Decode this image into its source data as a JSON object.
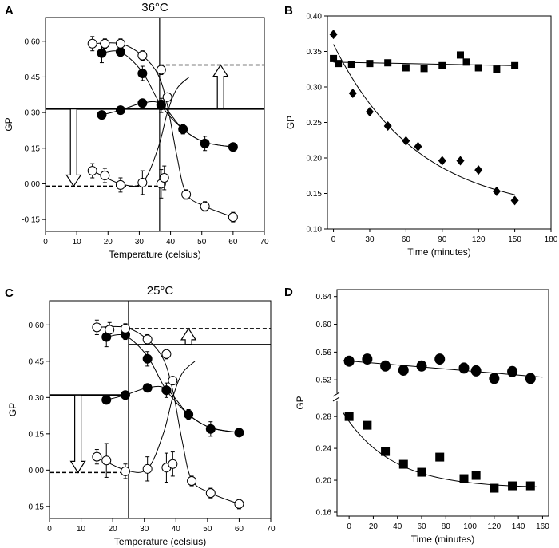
{
  "chart_data": [
    {
      "panel": "A",
      "type": "scatter",
      "title": "36°C",
      "xlabel": "Temperature (celsius)",
      "ylabel": "GP",
      "xlim": [
        0,
        70
      ],
      "ylim": [
        -0.2,
        0.7
      ],
      "xticks": [
        0,
        10,
        20,
        30,
        40,
        50,
        60,
        70
      ],
      "yticks": [
        0.6,
        0.45,
        0.3,
        0.15,
        0.0,
        -0.15
      ],
      "ytick_labels": [
        "0.60",
        "0.45",
        "0.30",
        "0.15",
        "0.00",
        "-0.15"
      ],
      "series": [
        {
          "name": "filled",
          "marker": "filled-circle",
          "x": [
            18,
            24,
            31,
            37,
            44,
            51,
            60
          ],
          "y": [
            0.55,
            0.555,
            0.465,
            0.33,
            0.23,
            0.17,
            0.155
          ],
          "err": [
            0.04,
            0.02,
            0.03,
            0.03,
            0.02,
            0.03,
            0.0
          ]
        },
        {
          "name": "filled-lower",
          "marker": "filled-circle",
          "x": [
            18,
            24,
            31,
            37
          ],
          "y": [
            0.29,
            0.31,
            0.34,
            0.335
          ],
          "err": [
            0.0,
            0.0,
            0.0,
            0.0
          ]
        },
        {
          "name": "open",
          "marker": "open-circle",
          "x": [
            15,
            19,
            24,
            31,
            37,
            39
          ],
          "y": [
            0.59,
            0.59,
            0.59,
            0.54,
            0.48,
            0.365
          ],
          "err": [
            0.03,
            0.02,
            0.02,
            0.02,
            0.02,
            0.0
          ]
        },
        {
          "name": "open-lower",
          "marker": "open-circle",
          "x": [
            15,
            19,
            24,
            31,
            37,
            38,
            45,
            51,
            60
          ],
          "y": [
            0.055,
            0.035,
            -0.005,
            0.005,
            0.0,
            0.025,
            -0.045,
            -0.095,
            -0.14
          ],
          "err": [
            0.03,
            0.03,
            0.03,
            0.05,
            0.06,
            0.05,
            0.02,
            0.02,
            0.02
          ]
        }
      ],
      "reference_lines": {
        "vertical_x": 36.5,
        "horizontal_solid_y": 0.315,
        "dashed_upper_y": 0.5,
        "dashed_lower_y": -0.01
      },
      "arrows": [
        {
          "direction": "down",
          "x": 9,
          "from_y": 0.315,
          "to_y": -0.01
        },
        {
          "direction": "up",
          "x": 56,
          "from_y": 0.315,
          "to_y": 0.5
        }
      ]
    },
    {
      "panel": "B",
      "type": "scatter",
      "title": "",
      "xlabel": "Time (minutes)",
      "ylabel": "GP",
      "xlim": [
        -5,
        180
      ],
      "ylim": [
        0.1,
        0.4
      ],
      "xticks": [
        0,
        30,
        60,
        90,
        120,
        150,
        180
      ],
      "yticks": [
        0.1,
        0.15,
        0.2,
        0.25,
        0.3,
        0.35,
        0.4
      ],
      "ytick_labels": [
        "0.10",
        "0.15",
        "0.20",
        "0.25",
        "0.30",
        "0.35",
        "0.40"
      ],
      "series": [
        {
          "name": "squares",
          "marker": "filled-square",
          "x": [
            0,
            4,
            15,
            30,
            45,
            60,
            75,
            90,
            105,
            110,
            120,
            135,
            150
          ],
          "y": [
            0.34,
            0.333,
            0.332,
            0.333,
            0.334,
            0.327,
            0.326,
            0.33,
            0.345,
            0.335,
            0.327,
            0.325,
            0.33
          ]
        },
        {
          "name": "diamonds",
          "marker": "filled-diamond",
          "x": [
            0,
            16,
            30,
            45,
            60,
            70,
            90,
            105,
            120,
            135,
            150
          ],
          "y": [
            0.374,
            0.291,
            0.265,
            0.245,
            0.224,
            0.216,
            0.196,
            0.196,
            0.183,
            0.153,
            0.14
          ]
        }
      ]
    },
    {
      "panel": "C",
      "type": "scatter",
      "title": "25°C",
      "xlabel": "Temperature (celsius)",
      "ylabel": "GP",
      "xlim": [
        0,
        70
      ],
      "ylim": [
        -0.2,
        0.7
      ],
      "xticks": [
        0,
        10,
        20,
        30,
        40,
        50,
        60,
        70
      ],
      "yticks": [
        0.6,
        0.45,
        0.3,
        0.15,
        0.0,
        -0.15
      ],
      "ytick_labels": [
        "0.60",
        "0.45",
        "0.30",
        "0.15",
        "0.00",
        "-0.15"
      ],
      "series": [
        {
          "name": "filled",
          "marker": "filled-circle",
          "x": [
            18,
            24,
            31,
            37,
            44,
            51,
            60
          ],
          "y": [
            0.55,
            0.56,
            0.46,
            0.33,
            0.23,
            0.17,
            0.155
          ],
          "err": [
            0.04,
            0.02,
            0.03,
            0.03,
            0.02,
            0.03,
            0.0
          ]
        },
        {
          "name": "filled-lower",
          "marker": "filled-circle",
          "x": [
            18,
            24,
            31,
            37
          ],
          "y": [
            0.29,
            0.31,
            0.34,
            0.33
          ],
          "err": [
            0.0,
            0.0,
            0.0,
            0.0
          ]
        },
        {
          "name": "open",
          "marker": "open-circle",
          "x": [
            15,
            19,
            24,
            31,
            37,
            39
          ],
          "y": [
            0.59,
            0.58,
            0.585,
            0.54,
            0.48,
            0.37
          ],
          "err": [
            0.03,
            0.03,
            0.02,
            0.02,
            0.02,
            0.0
          ]
        },
        {
          "name": "open-lower",
          "marker": "open-circle",
          "x": [
            15,
            18,
            24,
            31,
            37,
            39,
            45,
            51,
            60
          ],
          "y": [
            0.055,
            0.04,
            -0.005,
            0.005,
            0.01,
            0.025,
            -0.045,
            -0.095,
            -0.14
          ],
          "err": [
            0.03,
            0.07,
            0.03,
            0.05,
            0.06,
            0.05,
            0.02,
            0.02,
            0.02
          ]
        }
      ],
      "reference_lines": {
        "vertical_x": 25,
        "horizontal_solid_y": 0.31,
        "dashed_upper_y": 0.585,
        "dashed_lower_y": -0.01,
        "solid_upper_y": 0.52
      },
      "arrows": [
        {
          "direction": "down",
          "x": 9,
          "from_y": 0.31,
          "to_y": -0.01
        },
        {
          "direction": "up",
          "x": 44,
          "from_y": 0.52,
          "to_y": 0.585
        }
      ]
    },
    {
      "panel": "D",
      "type": "scatter",
      "title": "",
      "xlabel": "Time (minutes)",
      "ylabel": "GP",
      "xlim": [
        -10,
        165
      ],
      "ylim": [
        0.155,
        0.65
      ],
      "axis_break": {
        "lower_range": [
          0.155,
          0.3
        ],
        "upper_range": [
          0.5,
          0.65
        ]
      },
      "xticks": [
        0,
        20,
        40,
        60,
        80,
        100,
        120,
        140,
        160
      ],
      "yticks": [
        0.16,
        0.2,
        0.24,
        0.28,
        0.52,
        0.56,
        0.6,
        0.64
      ],
      "ytick_labels": [
        "0.16",
        "0.20",
        "0.24",
        "0.28",
        "0.52",
        "0.56",
        "0.60",
        "0.64"
      ],
      "series": [
        {
          "name": "circles",
          "marker": "filled-circle",
          "x": [
            0,
            15,
            30,
            45,
            60,
            75,
            95,
            105,
            120,
            135,
            150
          ],
          "y": [
            0.547,
            0.55,
            0.54,
            0.534,
            0.54,
            0.55,
            0.537,
            0.533,
            0.522,
            0.532,
            0.522
          ]
        },
        {
          "name": "squares",
          "marker": "filled-square",
          "x": [
            0,
            15,
            30,
            45,
            60,
            75,
            95,
            105,
            120,
            135,
            150
          ],
          "y": [
            0.28,
            0.269,
            0.236,
            0.22,
            0.21,
            0.229,
            0.202,
            0.206,
            0.19,
            0.193,
            0.193
          ]
        }
      ]
    }
  ]
}
